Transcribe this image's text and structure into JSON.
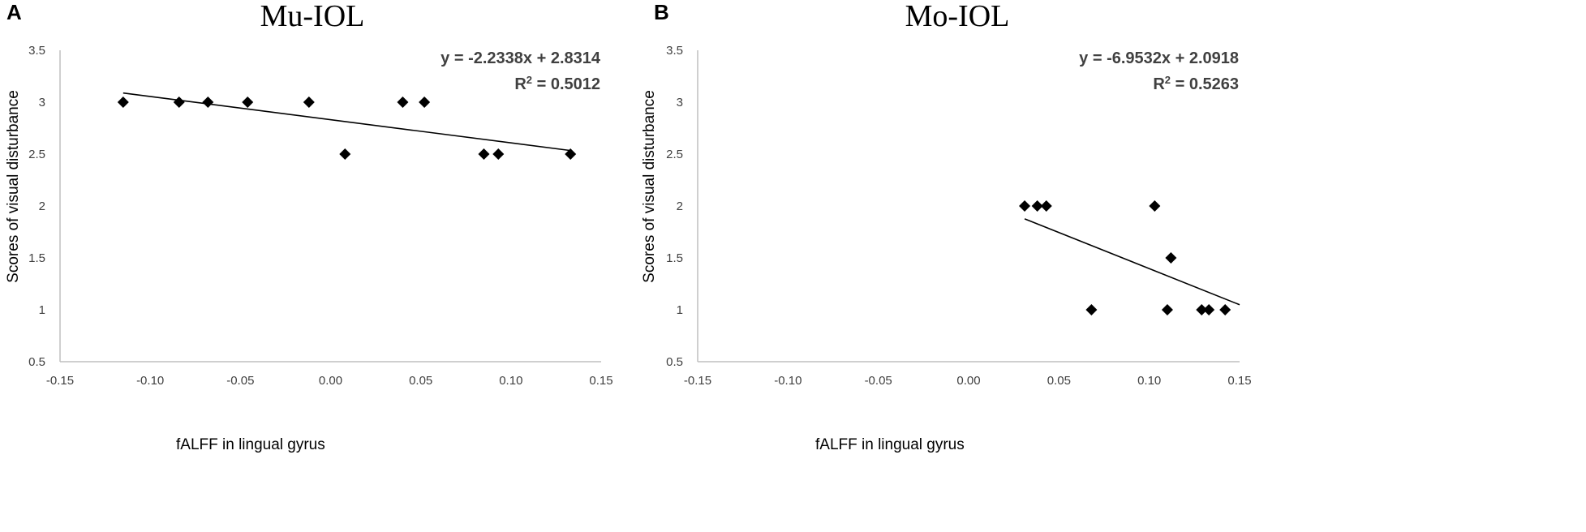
{
  "chart_data": [
    {
      "panel": "A",
      "type": "scatter",
      "title": "Mu-IOL",
      "xlabel": "fALFF in lingual gyrus",
      "ylabel": "Scores of visual disturbance",
      "xlim": [
        -0.15,
        0.15
      ],
      "ylim": [
        0.5,
        3.5
      ],
      "xticks": [
        "-0.15",
        "-0.10",
        "-0.05",
        "0.00",
        "0.05",
        "0.10",
        "0.15"
      ],
      "yticks": [
        "0.5",
        "1",
        "1.5",
        "2",
        "2.5",
        "3",
        "3.5"
      ],
      "grid": false,
      "points": [
        {
          "x": -0.115,
          "y": 3
        },
        {
          "x": -0.084,
          "y": 3
        },
        {
          "x": -0.068,
          "y": 3
        },
        {
          "x": -0.046,
          "y": 3
        },
        {
          "x": -0.012,
          "y": 3
        },
        {
          "x": 0.008,
          "y": 2.5
        },
        {
          "x": 0.04,
          "y": 3
        },
        {
          "x": 0.052,
          "y": 3
        },
        {
          "x": 0.085,
          "y": 2.5
        },
        {
          "x": 0.093,
          "y": 2.5
        },
        {
          "x": 0.133,
          "y": 2.5
        }
      ],
      "trendline": {
        "slope": -2.2338,
        "intercept": 2.8314,
        "x_range": [
          -0.115,
          0.133
        ]
      },
      "equation": "y = -2.2338x + 2.8314",
      "r2_prefix": "R",
      "r2_exponent": "2",
      "r2_suffix": " = 0.5012"
    },
    {
      "panel": "B",
      "type": "scatter",
      "title": "Mo-IOL",
      "xlabel": "fALFF in lingual gyrus",
      "ylabel": "Scores of visual disturbance",
      "xlim": [
        -0.15,
        0.15
      ],
      "ylim": [
        0.5,
        3.5
      ],
      "xticks": [
        "-0.15",
        "-0.10",
        "-0.05",
        "0.00",
        "0.05",
        "0.10",
        "0.15"
      ],
      "yticks": [
        "0.5",
        "1",
        "1.5",
        "2",
        "2.5",
        "3",
        "3.5"
      ],
      "grid": false,
      "points": [
        {
          "x": 0.031,
          "y": 2
        },
        {
          "x": 0.038,
          "y": 2
        },
        {
          "x": 0.043,
          "y": 2
        },
        {
          "x": 0.068,
          "y": 1
        },
        {
          "x": 0.103,
          "y": 2
        },
        {
          "x": 0.11,
          "y": 1
        },
        {
          "x": 0.112,
          "y": 1.5
        },
        {
          "x": 0.129,
          "y": 1
        },
        {
          "x": 0.133,
          "y": 1
        },
        {
          "x": 0.142,
          "y": 1
        }
      ],
      "trendline": {
        "slope": -6.9532,
        "intercept": 2.0918,
        "x_range": [
          0.031,
          0.15
        ]
      },
      "equation": "y = -6.9532x + 2.0918",
      "r2_prefix": "R",
      "r2_exponent": "2",
      "r2_suffix": " = 0.5263"
    }
  ]
}
